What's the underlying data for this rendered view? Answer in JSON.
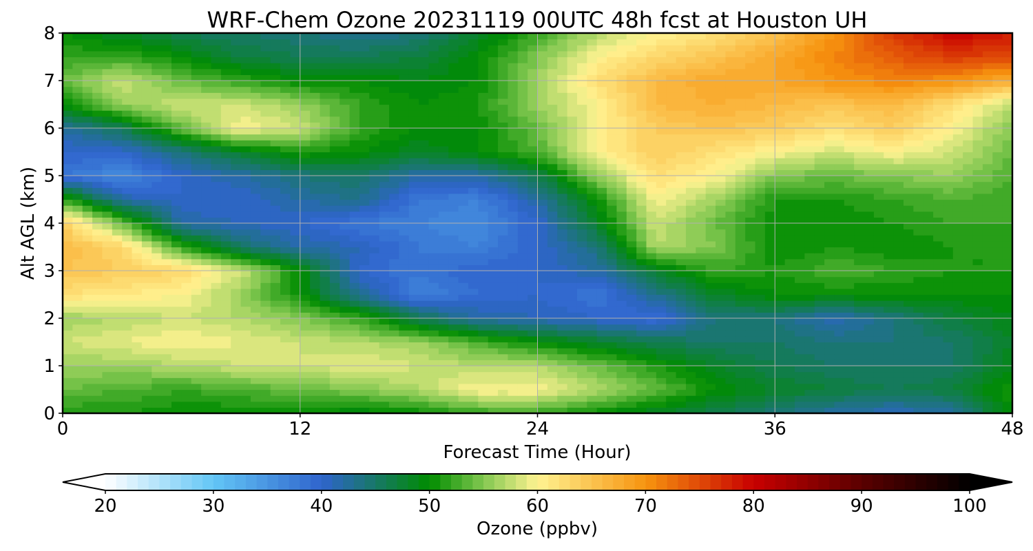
{
  "chart_data": {
    "type": "heatmap",
    "title": "WRF-Chem Ozone  20231119 00UTC 48h fcst at Houston UH",
    "xlabel": "Forecast Time (Hour)",
    "ylabel": "Alt AGL (km)",
    "xlim": [
      0,
      48
    ],
    "ylim": [
      0,
      8
    ],
    "xticks": [
      0,
      12,
      24,
      36,
      48
    ],
    "yticks": [
      0,
      1,
      2,
      3,
      4,
      5,
      6,
      7,
      8
    ],
    "grid": true,
    "colorbar": {
      "label": "Ozone  (ppbv)",
      "min": 20,
      "max": 100,
      "step": 1,
      "ticks": [
        20,
        30,
        40,
        50,
        60,
        70,
        80,
        90,
        100
      ],
      "extend": "both",
      "stops": [
        {
          "v": 20,
          "c": "#ffffff"
        },
        {
          "v": 30,
          "c": "#63c6f6"
        },
        {
          "v": 40,
          "c": "#2f64cd"
        },
        {
          "v": 50,
          "c": "#008c00"
        },
        {
          "v": 55,
          "c": "#82c850"
        },
        {
          "v": 60,
          "c": "#fff391"
        },
        {
          "v": 70,
          "c": "#f7940f"
        },
        {
          "v": 80,
          "c": "#c80000"
        },
        {
          "v": 90,
          "c": "#5a0000"
        },
        {
          "v": 100,
          "c": "#000000"
        }
      ]
    },
    "x": [
      0,
      3,
      6,
      9,
      12,
      15,
      18,
      21,
      24,
      27,
      30,
      33,
      36,
      39,
      42,
      45,
      48
    ],
    "y": [
      0,
      0.5,
      1,
      1.5,
      2,
      2.5,
      3,
      3.5,
      4,
      4.5,
      5,
      5.5,
      6,
      6.5,
      7,
      7.5,
      8
    ],
    "z": [
      [
        51,
        51,
        50,
        50,
        50,
        49,
        50,
        52,
        52,
        50,
        48,
        46,
        44,
        42,
        41,
        42,
        50
      ],
      [
        54,
        53,
        52,
        53,
        54,
        55,
        57,
        60,
        60,
        57,
        54,
        50,
        48,
        47,
        46,
        47,
        51
      ],
      [
        56,
        56,
        57,
        58,
        58,
        59,
        58,
        57,
        57,
        54,
        51,
        48,
        46,
        45,
        45,
        45,
        49
      ],
      [
        58,
        59,
        60,
        59,
        58,
        57,
        56,
        53,
        50,
        48,
        46,
        45,
        45,
        44,
        44,
        45,
        48
      ],
      [
        56,
        57,
        58,
        57,
        55,
        52,
        46,
        42,
        41,
        40,
        39,
        44,
        44,
        41,
        44,
        47,
        49
      ],
      [
        62,
        61,
        60,
        56,
        50,
        43,
        37,
        39,
        40,
        38,
        43,
        48,
        50,
        50,
        50,
        50,
        50
      ],
      [
        65,
        64,
        63,
        58,
        50,
        40,
        38,
        40,
        40,
        42,
        48,
        52,
        51,
        53,
        52,
        51,
        51
      ],
      [
        66,
        63,
        52,
        45,
        42,
        41,
        38,
        37,
        40,
        44,
        57,
        55,
        50,
        51,
        50,
        51,
        51
      ],
      [
        64,
        54,
        42,
        41,
        40,
        38,
        37,
        36,
        40,
        48,
        58,
        54,
        50,
        50,
        51,
        52,
        52
      ],
      [
        52,
        42,
        40,
        40,
        42,
        43,
        38,
        37,
        42,
        50,
        60,
        56,
        51,
        51,
        52,
        53,
        52
      ],
      [
        38,
        36,
        40,
        42,
        44,
        45,
        42,
        42,
        46,
        56,
        62,
        60,
        55,
        54,
        55,
        56,
        53
      ],
      [
        40,
        40,
        44,
        48,
        51,
        50,
        48,
        50,
        53,
        60,
        64,
        62,
        60,
        58,
        60,
        58,
        54
      ],
      [
        42,
        46,
        54,
        60,
        58,
        52,
        50,
        50,
        54,
        60,
        64,
        65,
        64,
        62,
        64,
        60,
        55
      ],
      [
        50,
        56,
        58,
        58,
        56,
        52,
        50,
        51,
        56,
        60,
        66,
        67,
        66,
        65,
        66,
        62,
        57
      ],
      [
        54,
        58,
        54,
        52,
        50,
        50,
        49,
        50,
        56,
        62,
        66,
        68,
        68,
        70,
        71,
        70,
        67
      ],
      [
        52,
        52,
        50,
        47,
        46,
        46,
        47,
        50,
        55,
        60,
        63,
        65,
        68,
        71,
        74,
        76,
        75
      ],
      [
        50,
        48,
        46,
        45,
        44,
        43,
        44,
        48,
        52,
        57,
        60,
        62,
        65,
        70,
        76,
        80,
        78
      ]
    ]
  }
}
